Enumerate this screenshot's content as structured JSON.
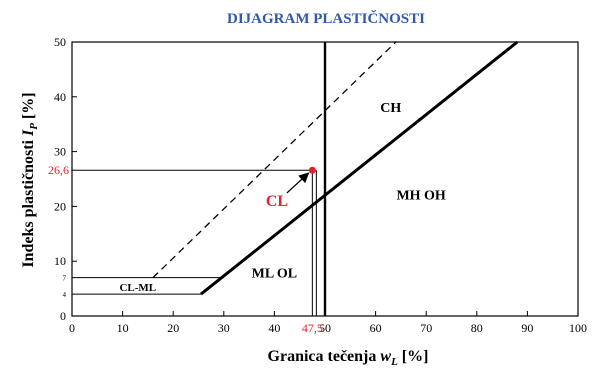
{
  "chart_data": {
    "type": "line",
    "title": "DIJAGRAM PLASTIČNOSTI",
    "xlabel_main": "Granica tečenja ",
    "xlabel_var": "w",
    "xlabel_sub": "L",
    "xlabel_unit": " [%]",
    "ylabel_main": "Indeks plastičnosti ",
    "ylabel_var": "I",
    "ylabel_sub": "P",
    "ylabel_unit": " [%]",
    "xlim": [
      0,
      100
    ],
    "ylim": [
      0,
      50
    ],
    "x_ticks": [
      "0",
      "10",
      "20",
      "30",
      "40",
      "50",
      "60",
      "70",
      "80",
      "90",
      "100"
    ],
    "y_ticks": [
      "0",
      "10",
      "20",
      "30",
      "40",
      "50"
    ],
    "extra_y_ticks": [
      "4",
      "7"
    ],
    "a_line": [
      [
        25.5,
        4
      ],
      [
        88,
        50
      ]
    ],
    "u_line": [
      [
        16,
        7
      ],
      [
        64,
        50
      ]
    ],
    "vertical_line_x": 50,
    "cl_ml_band": {
      "x_from": 0,
      "x_to": 30,
      "y_from": 4,
      "y_to": 7
    },
    "point": {
      "x": 47.5,
      "y": 26.6,
      "x_label": "47,5",
      "y_label": "26,6",
      "color": "#e8202a"
    },
    "region_labels": [
      {
        "text": "CH",
        "x": 63,
        "y": 38
      },
      {
        "text": "MH   OH",
        "x": 69,
        "y": 22
      },
      {
        "text": "ML  OL",
        "x": 40,
        "y": 7.8
      },
      {
        "text": "CL-ML",
        "x": 13,
        "y": 5.3
      }
    ],
    "cl_label": {
      "text": "CL",
      "x": 40.5,
      "y": 21,
      "color": "#e8202a"
    },
    "title_color": "#2f5aa8"
  }
}
